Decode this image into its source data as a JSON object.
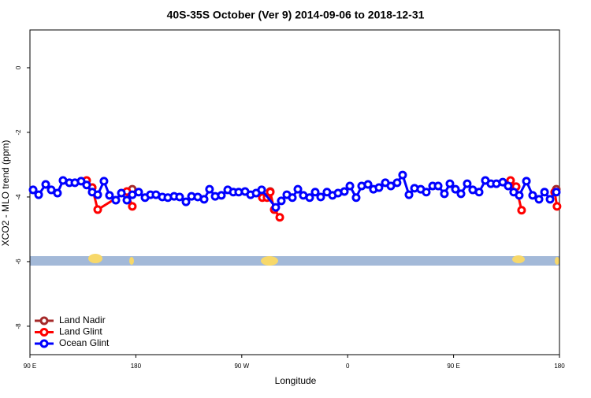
{
  "chart_data": {
    "type": "line",
    "title": "40S-35S October (Ver 9)   2014-09-06 to 2018-12-31",
    "x_label": "Longitude",
    "y_label": "XCO2 - MLO trend (ppm)",
    "xlim": [
      90,
      540
    ],
    "xticks": [
      {
        "value": 90,
        "label": "90 E"
      },
      {
        "value": 180,
        "label": "180"
      },
      {
        "value": 270,
        "label": "90 W"
      },
      {
        "value": 360,
        "label": "0"
      },
      {
        "value": 450,
        "label": "90 E"
      },
      {
        "value": 540,
        "label": "180"
      }
    ],
    "ylim": [
      -8.88,
      1.17
    ],
    "yticks": [
      0,
      -2,
      -4,
      -6,
      -8
    ],
    "legend": "bottom-left",
    "series": [
      {
        "name": "Land Nadir",
        "color": "#a52a2a",
        "x": [
          142.9,
          null,
          177.0,
          null,
          294.2,
          null,
          503.1,
          null,
          537.3
        ],
        "values": [
          -3.71,
          null,
          -3.76,
          null,
          -3.83,
          null,
          -3.68,
          null,
          -3.76
        ]
      },
      {
        "name": "Land Glint",
        "color": "#ff0000",
        "x": [
          138.2,
          142.9,
          147.6,
          172.4,
          177.0,
          null,
          287.5,
          291.5,
          294.2,
          297.6,
          302.3,
          null,
          498.4,
          503.1,
          507.8,
          null,
          535.9,
          537.9
        ],
        "values": [
          -3.49,
          -3.71,
          -4.39,
          -3.83,
          -4.29,
          null,
          -4.02,
          -4.02,
          -3.85,
          -4.39,
          -4.63,
          null,
          -3.49,
          -3.68,
          -4.41,
          null,
          -3.85,
          -4.29
        ]
      },
      {
        "name": "Ocean Glint",
        "color": "#0000ff",
        "x": [
          92.7,
          97.4,
          103.4,
          108.1,
          113.4,
          118.1,
          123.5,
          128.2,
          133.5,
          138.2,
          142.9,
          147.6,
          152.9,
          157.6,
          163.0,
          167.7,
          172.4,
          177.0,
          182.4,
          187.8,
          192.4,
          197.1,
          202.5,
          207.2,
          212.5,
          217.2,
          222.6,
          227.3,
          232.6,
          238.0,
          242.6,
          247.4,
          252.7,
          258.1,
          262.8,
          267.4,
          272.8,
          277.5,
          282.2,
          286.9,
          298.9,
          303.6,
          308.3,
          313.0,
          317.7,
          322.3,
          327.7,
          332.4,
          337.1,
          342.4,
          347.1,
          351.8,
          357.2,
          361.9,
          367.2,
          371.9,
          377.3,
          381.9,
          386.6,
          392.0,
          396.7,
          402.0,
          406.7,
          412.1,
          416.8,
          422.1,
          426.8,
          432.2,
          436.9,
          442.2,
          446.9,
          451.6,
          456.3,
          461.6,
          466.3,
          471.7,
          477.0,
          481.7,
          486.4,
          491.8,
          496.4,
          501.1,
          505.8,
          511.9,
          517.2,
          522.6,
          527.3,
          532.0,
          537.3
        ],
        "values": [
          -3.78,
          -3.93,
          -3.61,
          -3.78,
          -3.88,
          -3.49,
          -3.56,
          -3.56,
          -3.51,
          -3.63,
          -3.85,
          -3.93,
          -3.51,
          -3.95,
          -4.1,
          -3.88,
          -4.1,
          -3.93,
          -3.85,
          -4.02,
          -3.93,
          -3.93,
          -4.0,
          -4.02,
          -3.98,
          -4.0,
          -4.15,
          -3.98,
          -4.0,
          -4.07,
          -3.76,
          -3.98,
          -3.95,
          -3.78,
          -3.85,
          -3.85,
          -3.83,
          -3.93,
          -3.88,
          -3.78,
          -4.32,
          -4.12,
          -3.93,
          -4.02,
          -3.76,
          -3.95,
          -4.02,
          -3.85,
          -4.0,
          -3.85,
          -3.95,
          -3.88,
          -3.83,
          -3.66,
          -4.02,
          -3.66,
          -3.61,
          -3.76,
          -3.71,
          -3.56,
          -3.66,
          -3.56,
          -3.32,
          -3.93,
          -3.73,
          -3.76,
          -3.85,
          -3.66,
          -3.66,
          -3.9,
          -3.59,
          -3.76,
          -3.9,
          -3.59,
          -3.78,
          -3.85,
          -3.49,
          -3.59,
          -3.59,
          -3.54,
          -3.66,
          -3.85,
          -3.95,
          -3.51,
          -3.95,
          -4.07,
          -3.85,
          -4.07,
          -3.85
        ]
      }
    ]
  }
}
